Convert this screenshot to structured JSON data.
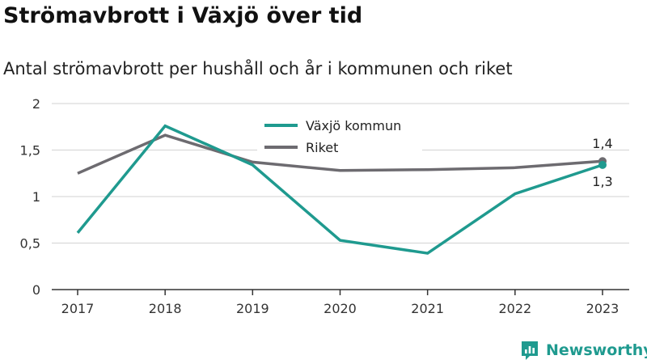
{
  "title": "Strömavbrott i Växjö över tid",
  "subtitle": "Antal strömavbrott per hushåll och år i kommunen och riket",
  "brand": "Newsworthy",
  "colors": {
    "vaxjo": "#1f9a8f",
    "riket": "#6d6b70",
    "grid": "#d9d9d9",
    "axis": "#333333"
  },
  "chart_data": {
    "type": "line",
    "categories": [
      "2017",
      "2018",
      "2019",
      "2020",
      "2021",
      "2022",
      "2023"
    ],
    "ylim": [
      0,
      2
    ],
    "yticks": [
      0,
      0.5,
      1,
      1.5,
      2
    ],
    "ytick_labels": [
      "0",
      "0,5",
      "1",
      "1,5",
      "2"
    ],
    "grid": true,
    "legend_position": "top-center",
    "series": [
      {
        "name": "Växjö kommun",
        "color": "#1f9a8f",
        "values": [
          0.61,
          1.76,
          1.34,
          0.53,
          0.39,
          1.03,
          1.34
        ],
        "end_label": "1,3"
      },
      {
        "name": "Riket",
        "color": "#6d6b70",
        "values": [
          1.25,
          1.66,
          1.37,
          1.28,
          1.29,
          1.31,
          1.38
        ],
        "end_label": "1,4"
      }
    ]
  }
}
